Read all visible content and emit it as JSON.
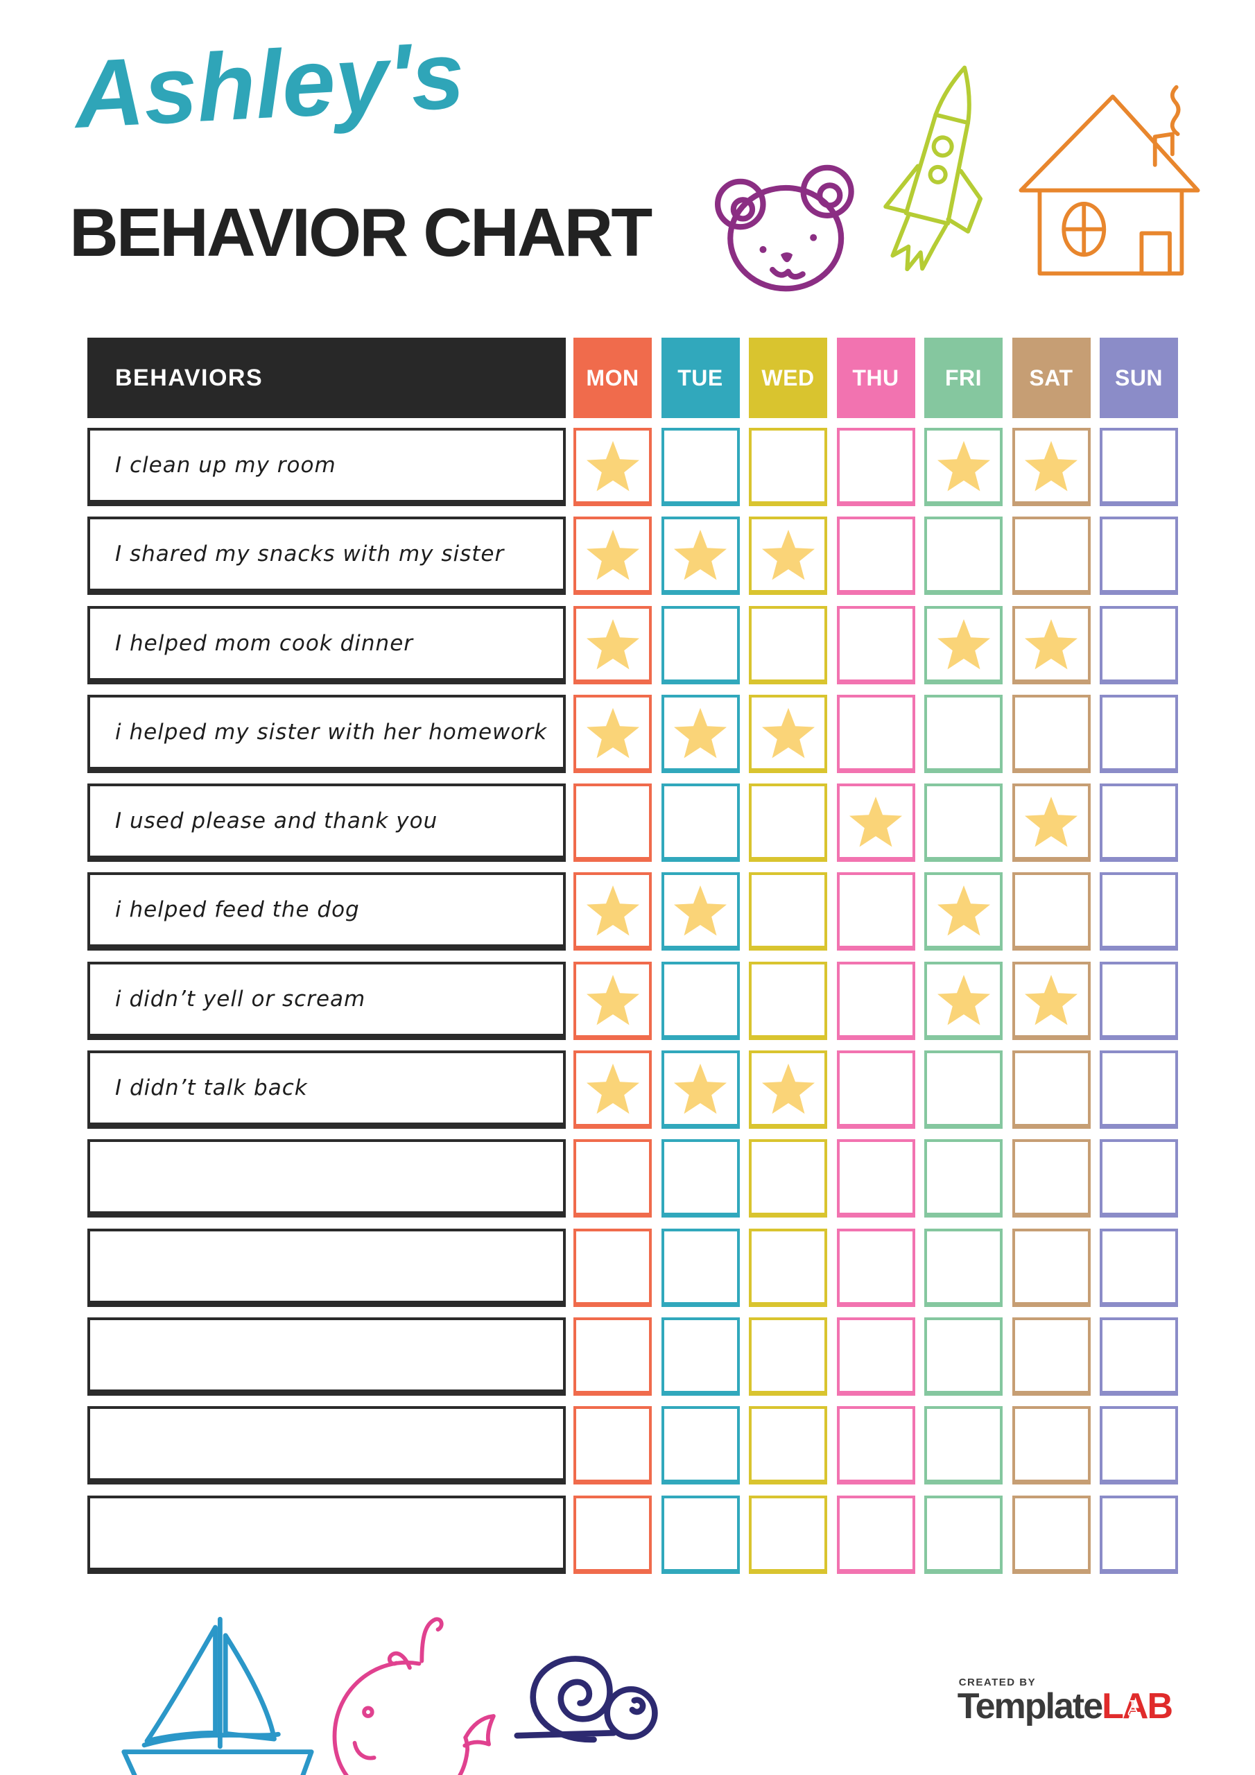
{
  "page": {
    "owner_name": "Ashley's",
    "heading": "BEHAVIOR CHART"
  },
  "colors": {
    "title_script": "#2FA5B8",
    "heading_text": "#222222",
    "behaviors_header_bg": "#282828",
    "star": "#FAD478",
    "logo_gray": "#3A3A3A",
    "logo_red": "#E02B2B"
  },
  "table": {
    "behaviors_header": "BEHAVIORS",
    "days": [
      {
        "label": "MON",
        "color": "#F06B4C"
      },
      {
        "label": "TUE",
        "color": "#31A8BC"
      },
      {
        "label": "WED",
        "color": "#D9C42F"
      },
      {
        "label": "THU",
        "color": "#F273B0"
      },
      {
        "label": "FRI",
        "color": "#85C79F"
      },
      {
        "label": "SAT",
        "color": "#C69E74"
      },
      {
        "label": "SUN",
        "color": "#8B8CC8"
      }
    ],
    "rows": [
      {
        "label": "I clean up my room",
        "stars": [
          0,
          4,
          5
        ]
      },
      {
        "label": "I shared my snacks with my sister",
        "stars": [
          0,
          1,
          2
        ]
      },
      {
        "label": "I helped mom cook dinner",
        "stars": [
          0,
          4,
          5
        ]
      },
      {
        "label": "i helped my sister with her homework",
        "stars": [
          0,
          1,
          2
        ]
      },
      {
        "label": "I used please and thank you",
        "stars": [
          3,
          5
        ]
      },
      {
        "label": "i helped feed the dog",
        "stars": [
          0,
          1,
          4
        ]
      },
      {
        "label": "i didn’t yell or scream",
        "stars": [
          0,
          4,
          5
        ]
      },
      {
        "label": "I didn’t talk back",
        "stars": [
          0,
          1,
          2
        ]
      },
      {
        "label": "",
        "stars": []
      },
      {
        "label": "",
        "stars": []
      },
      {
        "label": "",
        "stars": []
      },
      {
        "label": "",
        "stars": []
      },
      {
        "label": "",
        "stars": []
      }
    ]
  },
  "decorations": {
    "top": [
      {
        "icon": "bear-icon",
        "color": "#8B2E83"
      },
      {
        "icon": "rocket-icon",
        "color": "#B5CC34"
      },
      {
        "icon": "house-icon",
        "color": "#E8862D"
      }
    ],
    "bottom": [
      {
        "icon": "sailboat-icon",
        "color": "#2B97C8"
      },
      {
        "icon": "whale-icon",
        "color": "#E0418F"
      },
      {
        "icon": "snail-icon",
        "color": "#2D2A70"
      }
    ]
  },
  "footer": {
    "created_by": "CREATED BY",
    "brand_first": "Template",
    "brand_second": "LAB"
  }
}
